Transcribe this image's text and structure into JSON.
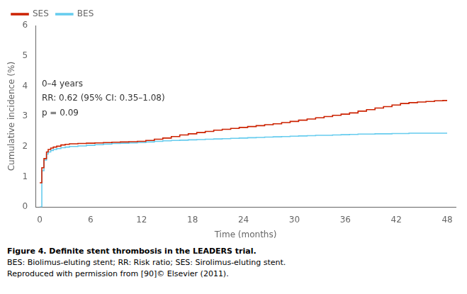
{
  "chart_data": {
    "type": "step",
    "xlabel": "Time (months)",
    "ylabel": "Cumulative incidence (%)",
    "annotations": [
      "0–4 years",
      "RR: 0.62 (95% CI: 0.35–1.08)",
      "p = 0.09"
    ],
    "caption": [
      "Figure 4. Definite stent thrombosis in the LEADERS trial.",
      "BES: Biolimus-eluting stent; RR: Risk ratio; SES: Sirolimus-eluting stent.",
      "Reproduced with permission from [90]© Elsevier (2011)."
    ],
    "x": [
      0,
      0.25,
      0.5,
      0.8,
      1.0,
      1.3,
      1.6,
      2.0,
      2.5,
      3.0,
      3.5,
      4.5,
      5.5,
      6.5,
      7.5,
      8.5,
      9.5,
      10.5,
      11.5,
      12.5,
      13.5,
      14.5,
      15.5,
      16.5,
      17.5,
      18.5,
      19.5,
      20.5,
      21.5,
      22.5,
      23.5,
      24.5,
      25.5,
      26.5,
      27.5,
      28.5,
      29.5,
      30.5,
      31.5,
      32.5,
      33.5,
      34.5,
      35.5,
      36.5,
      37.5,
      38.5,
      39.5,
      40.5,
      41.5,
      42.5,
      43.5,
      44.5,
      45.5,
      46.5,
      47.5,
      48
    ],
    "series": [
      {
        "name": "SES",
        "color": "#cc2200",
        "values": [
          0.8,
          1.3,
          1.6,
          1.82,
          1.9,
          1.95,
          1.98,
          2.01,
          2.05,
          2.07,
          2.09,
          2.1,
          2.11,
          2.12,
          2.13,
          2.14,
          2.15,
          2.16,
          2.17,
          2.2,
          2.24,
          2.28,
          2.33,
          2.38,
          2.42,
          2.46,
          2.5,
          2.54,
          2.57,
          2.6,
          2.63,
          2.66,
          2.69,
          2.72,
          2.75,
          2.79,
          2.83,
          2.87,
          2.91,
          2.95,
          2.99,
          3.03,
          3.07,
          3.11,
          3.17,
          3.22,
          3.27,
          3.32,
          3.37,
          3.42,
          3.45,
          3.47,
          3.49,
          3.51,
          3.52,
          3.52
        ]
      },
      {
        "name": "BES",
        "color": "#66ccee",
        "values": [
          0.0,
          1.2,
          1.55,
          1.75,
          1.82,
          1.87,
          1.9,
          1.93,
          1.96,
          1.98,
          2.0,
          2.02,
          2.04,
          2.06,
          2.08,
          2.1,
          2.11,
          2.12,
          2.13,
          2.15,
          2.17,
          2.19,
          2.2,
          2.21,
          2.22,
          2.23,
          2.24,
          2.25,
          2.26,
          2.27,
          2.28,
          2.29,
          2.3,
          2.31,
          2.32,
          2.33,
          2.34,
          2.35,
          2.36,
          2.37,
          2.37,
          2.38,
          2.39,
          2.4,
          2.41,
          2.41,
          2.42,
          2.42,
          2.43,
          2.43,
          2.44,
          2.44,
          2.44,
          2.44,
          2.44,
          2.44
        ]
      }
    ],
    "xlim": [
      -0.5,
      49
    ],
    "ylim": [
      0,
      6
    ],
    "xticks": [
      0,
      6,
      12,
      18,
      24,
      30,
      36,
      42,
      48
    ],
    "yticks": [
      0,
      1,
      2,
      3,
      4,
      5,
      6
    ],
    "grid": false,
    "legend": "upper left"
  }
}
